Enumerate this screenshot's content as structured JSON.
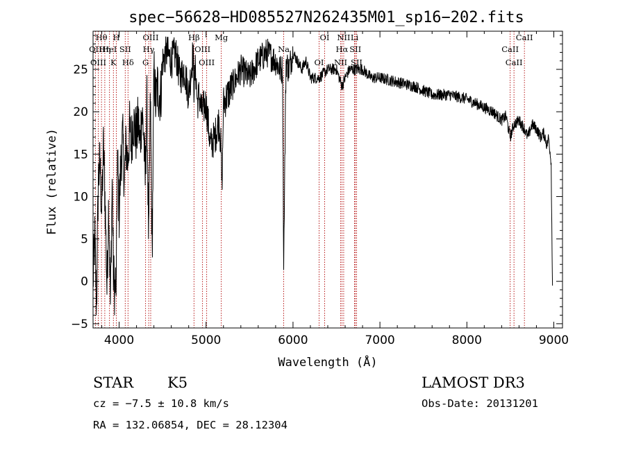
{
  "chart_data": {
    "type": "line",
    "title": "spec−56628−HD085527N262435M01_sp16−202.fits",
    "xlabel": "Wavelength (Å)",
    "ylabel": "Flux (relative)",
    "xlim": [
      3700,
      9100
    ],
    "ylim": [
      -5.5,
      29.5
    ],
    "x_ticks": [
      4000,
      5000,
      6000,
      7000,
      8000,
      9000
    ],
    "y_ticks": [
      -5,
      0,
      5,
      10,
      15,
      20,
      25
    ],
    "series": [
      {
        "name": "spectrum",
        "x": [
          3700,
          3720,
          3740,
          3760,
          3780,
          3800,
          3820,
          3840,
          3860,
          3880,
          3900,
          3920,
          3934,
          3950,
          3968,
          3980,
          4000,
          4020,
          4040,
          4060,
          4080,
          4100,
          4120,
          4140,
          4160,
          4180,
          4200,
          4220,
          4240,
          4260,
          4280,
          4300,
          4320,
          4340,
          4360,
          4380,
          4400,
          4420,
          4440,
          4460,
          4480,
          4500,
          4550,
          4600,
          4650,
          4700,
          4750,
          4800,
          4850,
          4861,
          4880,
          4900,
          4920,
          4950,
          5000,
          5050,
          5100,
          5150,
          5170,
          5183,
          5200,
          5250,
          5300,
          5400,
          5500,
          5600,
          5700,
          5800,
          5850,
          5880,
          5893,
          5900,
          5920,
          5950,
          6000,
          6050,
          6100,
          6150,
          6200,
          6300,
          6400,
          6500,
          6563,
          6600,
          6650,
          6700,
          6800,
          6900,
          7000,
          7200,
          7400,
          7600,
          7800,
          8000,
          8200,
          8300,
          8400,
          8450,
          8498,
          8542,
          8600,
          8662,
          8700,
          8750,
          8800,
          8850,
          8880,
          8900,
          8920,
          8940,
          8960,
          8970,
          8980,
          8985
        ],
        "values": [
          0,
          5,
          -3,
          12,
          14,
          8,
          16,
          9,
          -1,
          10,
          -3,
          12,
          1,
          -1,
          0,
          15,
          8,
          14,
          17,
          12,
          16,
          14,
          18,
          16,
          19,
          18,
          17,
          19,
          16,
          20,
          18,
          12,
          21,
          4,
          22,
          3,
          25,
          21,
          23,
          22,
          22,
          26,
          27,
          26,
          27,
          24,
          25,
          22,
          27,
          23,
          25,
          21,
          22,
          20,
          21,
          16,
          17,
          19,
          16,
          11,
          21,
          22,
          23,
          25,
          24,
          26,
          27,
          26,
          25,
          25,
          2,
          9,
          26,
          25,
          27,
          26,
          25,
          26,
          24,
          24,
          25,
          25,
          23,
          24,
          25,
          25,
          25,
          24,
          24,
          23.5,
          23,
          22,
          22,
          21.5,
          20.5,
          20,
          19,
          19.5,
          17,
          18.5,
          19,
          18,
          17,
          18.5,
          18,
          17,
          17.5,
          17,
          16,
          17,
          15,
          14,
          3,
          -0.5
        ]
      }
    ],
    "line_markers": [
      {
        "name": "Hθ",
        "x": 3797
      },
      {
        "name": "OII",
        "x": 3727
      },
      {
        "name": "OIII",
        "x": 3760
      },
      {
        "name": "HeI",
        "x": 3889
      },
      {
        "name": "Hη",
        "x": 3835
      },
      {
        "name": "K",
        "x": 3934
      },
      {
        "name": "H",
        "x": 3968
      },
      {
        "name": "SII",
        "x": 4070
      },
      {
        "name": "Hδ",
        "x": 4102
      },
      {
        "name": "OIII",
        "x": 4363
      },
      {
        "name": "Hγ",
        "x": 4340
      },
      {
        "name": "G",
        "x": 4304
      },
      {
        "name": "Hβ",
        "x": 4861
      },
      {
        "name": "OIII",
        "x": 4959
      },
      {
        "name": "OIII",
        "x": 5007
      },
      {
        "name": "Mg",
        "x": 5175
      },
      {
        "name": "Na",
        "x": 5893
      },
      {
        "name": "OI",
        "x": 6300
      },
      {
        "name": "OI",
        "x": 6364
      },
      {
        "name": "Hα",
        "x": 6563
      },
      {
        "name": "NII",
        "x": 6548
      },
      {
        "name": "NII",
        "x": 6583
      },
      {
        "name": "SII",
        "x": 6717
      },
      {
        "name": "SII",
        "x": 6731
      },
      {
        "name": "Li",
        "x": 6708
      },
      {
        "name": "CaII",
        "x": 8498
      },
      {
        "name": "CaII",
        "x": 8542
      },
      {
        "name": "CaII",
        "x": 8662
      }
    ]
  },
  "info": {
    "class_label": "STAR",
    "subclass": "K5",
    "cz": "cz = −7.5 ± 10.8 km/s",
    "radec": "RA = 132.06854, DEC =  28.12304",
    "survey": "LAMOST DR3",
    "obs_date": "Obs-Date: 20131201"
  },
  "colors": {
    "axis": "#000000",
    "spectrum": "#000000",
    "marker": "#b00000"
  }
}
